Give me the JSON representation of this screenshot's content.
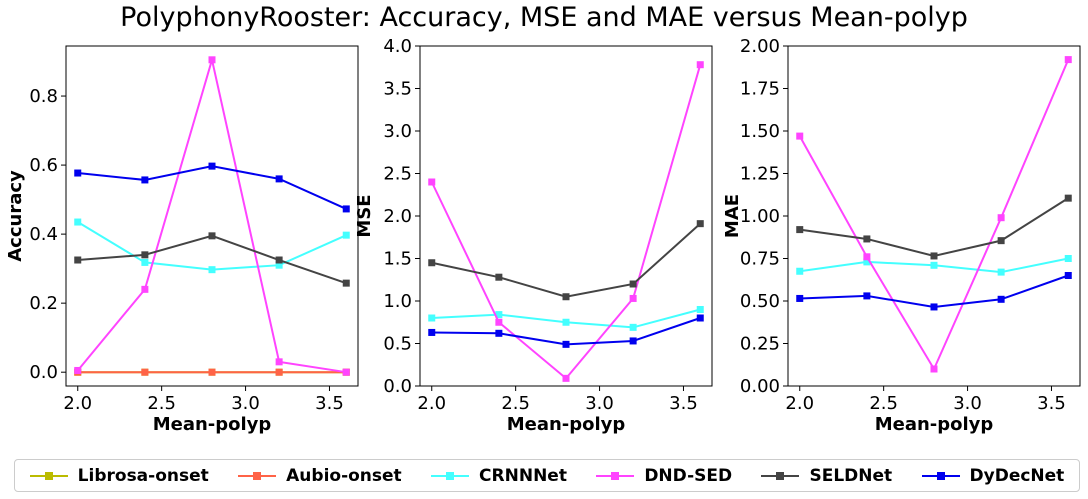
{
  "figure": {
    "title": "PolyphonyRooster: Accuracy, MSE and MAE versus Mean-polyp"
  },
  "legend": {
    "placement": "bottom",
    "entries": [
      {
        "label": "Librosa-onset",
        "color": "#bbbb00"
      },
      {
        "label": "Aubio-onset",
        "color": "#ff6347"
      },
      {
        "label": "CRNNNet",
        "color": "#44ffff"
      },
      {
        "label": "DND-SED",
        "color": "#ff44ff"
      },
      {
        "label": "SELDNet",
        "color": "#444444"
      },
      {
        "label": "DyDecNet",
        "color": "#0000ee"
      }
    ]
  },
  "chart_data": [
    {
      "type": "line",
      "xlabel": "Mean-polyp",
      "ylabel": "Accuracy",
      "xlim": [
        1.93,
        3.67
      ],
      "ylim": [
        -0.04,
        0.945
      ],
      "xticks": [
        "2.0",
        "2.5",
        "3.0",
        "3.5"
      ],
      "yticks": [
        "0.0",
        "0.2",
        "0.4",
        "0.6",
        "0.8"
      ],
      "x": [
        2.0,
        2.4,
        2.8,
        3.2,
        3.6
      ],
      "grid": false,
      "series": [
        {
          "name": "Librosa-onset",
          "color": "#bbbb00",
          "values": [
            0.0,
            0.0,
            0.0,
            0.0,
            0.0
          ]
        },
        {
          "name": "Aubio-onset",
          "color": "#ff6347",
          "values": [
            0.0,
            0.0,
            0.0,
            0.0,
            0.0
          ]
        },
        {
          "name": "CRNNNet",
          "color": "#44ffff",
          "values": [
            0.435,
            0.318,
            0.297,
            0.31,
            0.397
          ]
        },
        {
          "name": "DND-SED",
          "color": "#ff44ff",
          "values": [
            0.005,
            0.24,
            0.905,
            0.03,
            0.0
          ]
        },
        {
          "name": "SELDNet",
          "color": "#444444",
          "values": [
            0.325,
            0.34,
            0.395,
            0.325,
            0.258
          ]
        },
        {
          "name": "DyDecNet",
          "color": "#0000ee",
          "values": [
            0.577,
            0.557,
            0.597,
            0.56,
            0.473
          ]
        }
      ]
    },
    {
      "type": "line",
      "xlabel": "Mean-polyp",
      "ylabel": "MSE",
      "xlim": [
        1.93,
        3.67
      ],
      "ylim": [
        0.0,
        4.0
      ],
      "xticks": [
        "2.0",
        "2.5",
        "3.0",
        "3.5"
      ],
      "yticks": [
        "0.0",
        "0.5",
        "1.0",
        "1.5",
        "2.0",
        "2.5",
        "3.0",
        "3.5",
        "4.0"
      ],
      "x": [
        2.0,
        2.4,
        2.8,
        3.2,
        3.6
      ],
      "grid": false,
      "series": [
        {
          "name": "CRNNNet",
          "color": "#44ffff",
          "values": [
            0.8,
            0.84,
            0.75,
            0.69,
            0.9
          ]
        },
        {
          "name": "DND-SED",
          "color": "#ff44ff",
          "values": [
            2.4,
            0.75,
            0.09,
            1.03,
            3.78
          ]
        },
        {
          "name": "SELDNet",
          "color": "#444444",
          "values": [
            1.45,
            1.28,
            1.05,
            1.2,
            1.91
          ]
        },
        {
          "name": "DyDecNet",
          "color": "#0000ee",
          "values": [
            0.63,
            0.62,
            0.49,
            0.53,
            0.8
          ]
        }
      ]
    },
    {
      "type": "line",
      "xlabel": "Mean-polyp",
      "ylabel": "MAE",
      "xlim": [
        1.93,
        3.67
      ],
      "ylim": [
        0.0,
        2.0
      ],
      "xticks": [
        "2.0",
        "2.5",
        "3.0",
        "3.5"
      ],
      "yticks": [
        "0.00",
        "0.25",
        "0.50",
        "0.75",
        "1.00",
        "1.25",
        "1.50",
        "1.75",
        "2.00"
      ],
      "x": [
        2.0,
        2.4,
        2.8,
        3.2,
        3.6
      ],
      "grid": false,
      "series": [
        {
          "name": "CRNNNet",
          "color": "#44ffff",
          "values": [
            0.675,
            0.73,
            0.71,
            0.67,
            0.75
          ]
        },
        {
          "name": "DND-SED",
          "color": "#ff44ff",
          "values": [
            1.47,
            0.76,
            0.1,
            0.99,
            1.92
          ]
        },
        {
          "name": "SELDNet",
          "color": "#444444",
          "values": [
            0.92,
            0.865,
            0.765,
            0.855,
            1.105
          ]
        },
        {
          "name": "DyDecNet",
          "color": "#0000ee",
          "values": [
            0.515,
            0.53,
            0.465,
            0.51,
            0.65
          ]
        }
      ]
    }
  ]
}
